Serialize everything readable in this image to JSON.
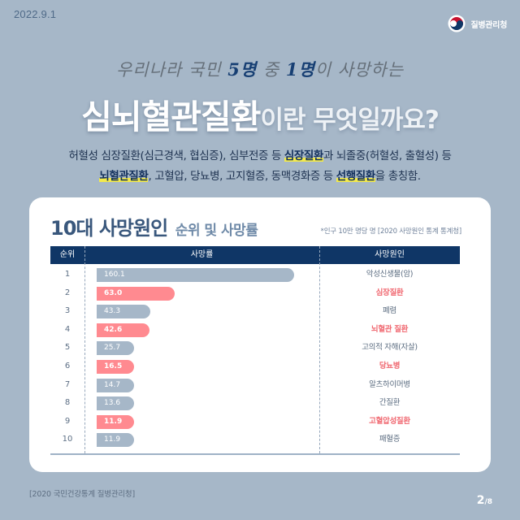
{
  "header": {
    "date": "2022.9.1",
    "org_name": "질병관리청",
    "logo_icon": "taegeuk-emblem-icon"
  },
  "hero": {
    "handwritten_pre": "우리나라 국민 ",
    "handwritten_accent1": "5명",
    "handwritten_mid": " 중 ",
    "handwritten_accent2": "1명",
    "handwritten_post": "이 사망하는",
    "title_main": "심뇌혈관질환",
    "title_rest": "이란 무엇일까요?"
  },
  "description": {
    "line1_a": "허혈성 심장질환(심근경색, 협심증), 심부전증 등 ",
    "line1_hl": "심장질환",
    "line1_b": "과 뇌졸중(허혈성, 출혈성) 등",
    "line2_hl1": "뇌혈관질환",
    "line2_a": ", 고혈압, 당뇨병, 고지혈증, 동맥경화증 등 ",
    "line2_hl2": "선행질환",
    "line2_b": "을 총칭함.",
    "highlight_color": "#f3ea4c"
  },
  "card": {
    "title_bold": "10대 사망원인",
    "title_light": "순위 및 사망률",
    "note": "*인구 10만 명당 명 [2020 사망원인 통계 통계청]",
    "columns": [
      "순위",
      "사망률",
      "사망원인"
    ]
  },
  "chart_data": {
    "type": "bar",
    "orientation": "horizontal",
    "title": "10대 사망원인 순위 및 사망률",
    "note": "*인구 10만 명당 명 [2020 사망원인 통계 통계청]",
    "xlabel": "사망률",
    "ylabel": "사망원인",
    "unit": "인구 10만 명당 명",
    "max_value": 160.1,
    "colors": {
      "default": "#a6b7c8",
      "highlight": "#ff8a90",
      "highlight_text": "#f06a72"
    },
    "rows": [
      {
        "rank": "1",
        "value": 160.1,
        "label": "160.1",
        "cause": "악성신생물(암)",
        "highlight": false
      },
      {
        "rank": "2",
        "value": 63.0,
        "label": "63.0",
        "cause": "심장질환",
        "highlight": true
      },
      {
        "rank": "3",
        "value": 43.3,
        "label": "43.3",
        "cause": "폐렴",
        "highlight": false
      },
      {
        "rank": "4",
        "value": 42.6,
        "label": "42.6",
        "cause": "뇌혈관 질환",
        "highlight": true
      },
      {
        "rank": "5",
        "value": 25.7,
        "label": "25.7",
        "cause": "고의적 자해(자살)",
        "highlight": false
      },
      {
        "rank": "6",
        "value": 16.5,
        "label": "16.5",
        "cause": "당뇨병",
        "highlight": true
      },
      {
        "rank": "7",
        "value": 14.7,
        "label": "14.7",
        "cause": "알츠하이머병",
        "highlight": false
      },
      {
        "rank": "8",
        "value": 13.6,
        "label": "13.6",
        "cause": "간질환",
        "highlight": false
      },
      {
        "rank": "9",
        "value": 11.9,
        "label": "11.9",
        "cause": "고혈압성질환",
        "highlight": true
      },
      {
        "rank": "10",
        "value": 11.9,
        "label": "11.9",
        "cause": "패혈증",
        "highlight": false
      }
    ]
  },
  "footer": {
    "source": "[2020 국민건강통계 질병관리청]",
    "page_current": "2",
    "page_total": "/8"
  }
}
